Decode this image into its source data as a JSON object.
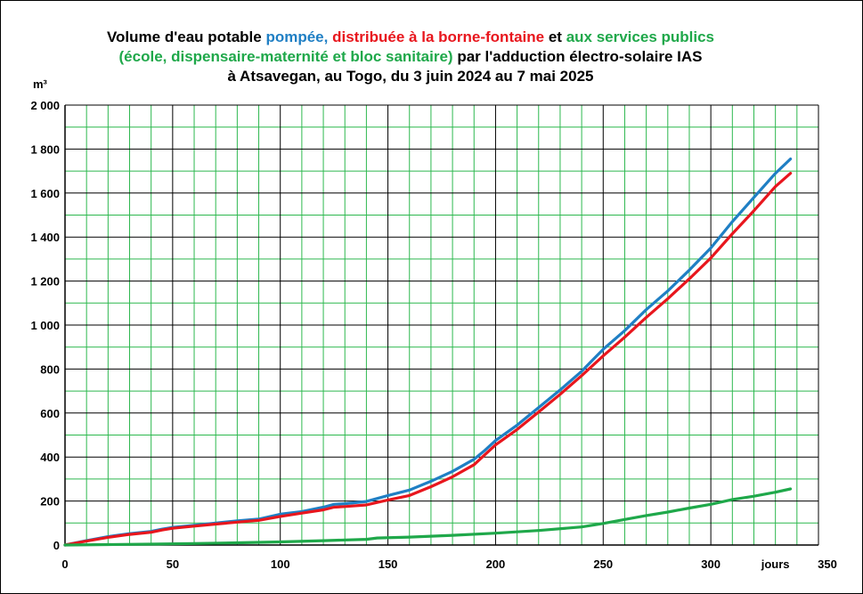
{
  "title": {
    "line1": [
      {
        "text": "Volume d'eau potable ",
        "color": "#000000"
      },
      {
        "text": "pompée,",
        "color": "#1f7fc4"
      },
      {
        "text": " distribuée à la borne-fontaine",
        "color": "#e8161d"
      },
      {
        "text": " et ",
        "color": "#000000"
      },
      {
        "text": "aux services publics",
        "color": "#1fa84a"
      }
    ],
    "line2": [
      {
        "text": "(école, dispensaire-maternité et bloc sanitaire)",
        "color": "#1fa84a"
      },
      {
        "text": " par l'adduction électro-solaire IAS",
        "color": "#000000"
      }
    ],
    "line3": [
      {
        "text": "à Atsavegan, au Togo, du 3 juin 2024 au 7 mai 2025",
        "color": "#000000"
      }
    ]
  },
  "chart_data": {
    "type": "line",
    "ylabel": "m³",
    "xlabel": "jours",
    "xlim": [
      0,
      350
    ],
    "ylim": [
      0,
      2000
    ],
    "x_ticks": [
      "0",
      "50",
      "100",
      "150",
      "200",
      "250",
      "300",
      "350"
    ],
    "y_ticks": [
      "0",
      "200",
      "400",
      "600",
      "800",
      "1 000",
      "1 200",
      "1 400",
      "1 600",
      "1 800",
      "2 000"
    ],
    "grid": true,
    "minor_grid_step_x": 10,
    "minor_grid_step_y": 100,
    "colors": {
      "major_grid": "#000000",
      "minor_grid": "#2db84f",
      "axis": "#000000"
    },
    "series": [
      {
        "color": "#1f7fc4",
        "points": [
          [
            0,
            0
          ],
          [
            10,
            20
          ],
          [
            20,
            38
          ],
          [
            30,
            52
          ],
          [
            40,
            62
          ],
          [
            45,
            72
          ],
          [
            50,
            80
          ],
          [
            60,
            90
          ],
          [
            70,
            100
          ],
          [
            80,
            110
          ],
          [
            90,
            118
          ],
          [
            100,
            140
          ],
          [
            110,
            152
          ],
          [
            120,
            172
          ],
          [
            125,
            185
          ],
          [
            130,
            188
          ],
          [
            140,
            198
          ],
          [
            150,
            225
          ],
          [
            160,
            250
          ],
          [
            170,
            290
          ],
          [
            180,
            335
          ],
          [
            190,
            390
          ],
          [
            195,
            430
          ],
          [
            200,
            475
          ],
          [
            210,
            545
          ],
          [
            220,
            625
          ],
          [
            230,
            705
          ],
          [
            240,
            790
          ],
          [
            245,
            840
          ],
          [
            250,
            890
          ],
          [
            260,
            975
          ],
          [
            270,
            1070
          ],
          [
            280,
            1155
          ],
          [
            290,
            1250
          ],
          [
            300,
            1350
          ],
          [
            310,
            1470
          ],
          [
            320,
            1580
          ],
          [
            330,
            1690
          ],
          [
            337,
            1755
          ]
        ]
      },
      {
        "color": "#e8161d",
        "points": [
          [
            0,
            0
          ],
          [
            10,
            18
          ],
          [
            20,
            35
          ],
          [
            30,
            48
          ],
          [
            40,
            58
          ],
          [
            45,
            68
          ],
          [
            50,
            76
          ],
          [
            60,
            86
          ],
          [
            70,
            95
          ],
          [
            80,
            104
          ],
          [
            90,
            112
          ],
          [
            100,
            130
          ],
          [
            110,
            145
          ],
          [
            120,
            160
          ],
          [
            125,
            172
          ],
          [
            130,
            175
          ],
          [
            140,
            182
          ],
          [
            150,
            205
          ],
          [
            160,
            225
          ],
          [
            170,
            265
          ],
          [
            180,
            310
          ],
          [
            190,
            365
          ],
          [
            195,
            410
          ],
          [
            200,
            455
          ],
          [
            210,
            525
          ],
          [
            220,
            605
          ],
          [
            230,
            685
          ],
          [
            240,
            770
          ],
          [
            245,
            815
          ],
          [
            250,
            860
          ],
          [
            260,
            945
          ],
          [
            270,
            1035
          ],
          [
            280,
            1120
          ],
          [
            290,
            1210
          ],
          [
            300,
            1305
          ],
          [
            310,
            1415
          ],
          [
            320,
            1520
          ],
          [
            330,
            1630
          ],
          [
            337,
            1690
          ]
        ]
      },
      {
        "color": "#1fa84a",
        "points": [
          [
            0,
            0
          ],
          [
            20,
            2
          ],
          [
            40,
            4
          ],
          [
            60,
            7
          ],
          [
            80,
            10
          ],
          [
            100,
            14
          ],
          [
            120,
            20
          ],
          [
            140,
            26
          ],
          [
            145,
            32
          ],
          [
            160,
            36
          ],
          [
            180,
            44
          ],
          [
            200,
            54
          ],
          [
            220,
            66
          ],
          [
            240,
            82
          ],
          [
            250,
            98
          ],
          [
            260,
            116
          ],
          [
            270,
            134
          ],
          [
            280,
            150
          ],
          [
            290,
            168
          ],
          [
            300,
            185
          ],
          [
            310,
            207
          ],
          [
            320,
            222
          ],
          [
            330,
            240
          ],
          [
            337,
            255
          ]
        ]
      }
    ]
  }
}
